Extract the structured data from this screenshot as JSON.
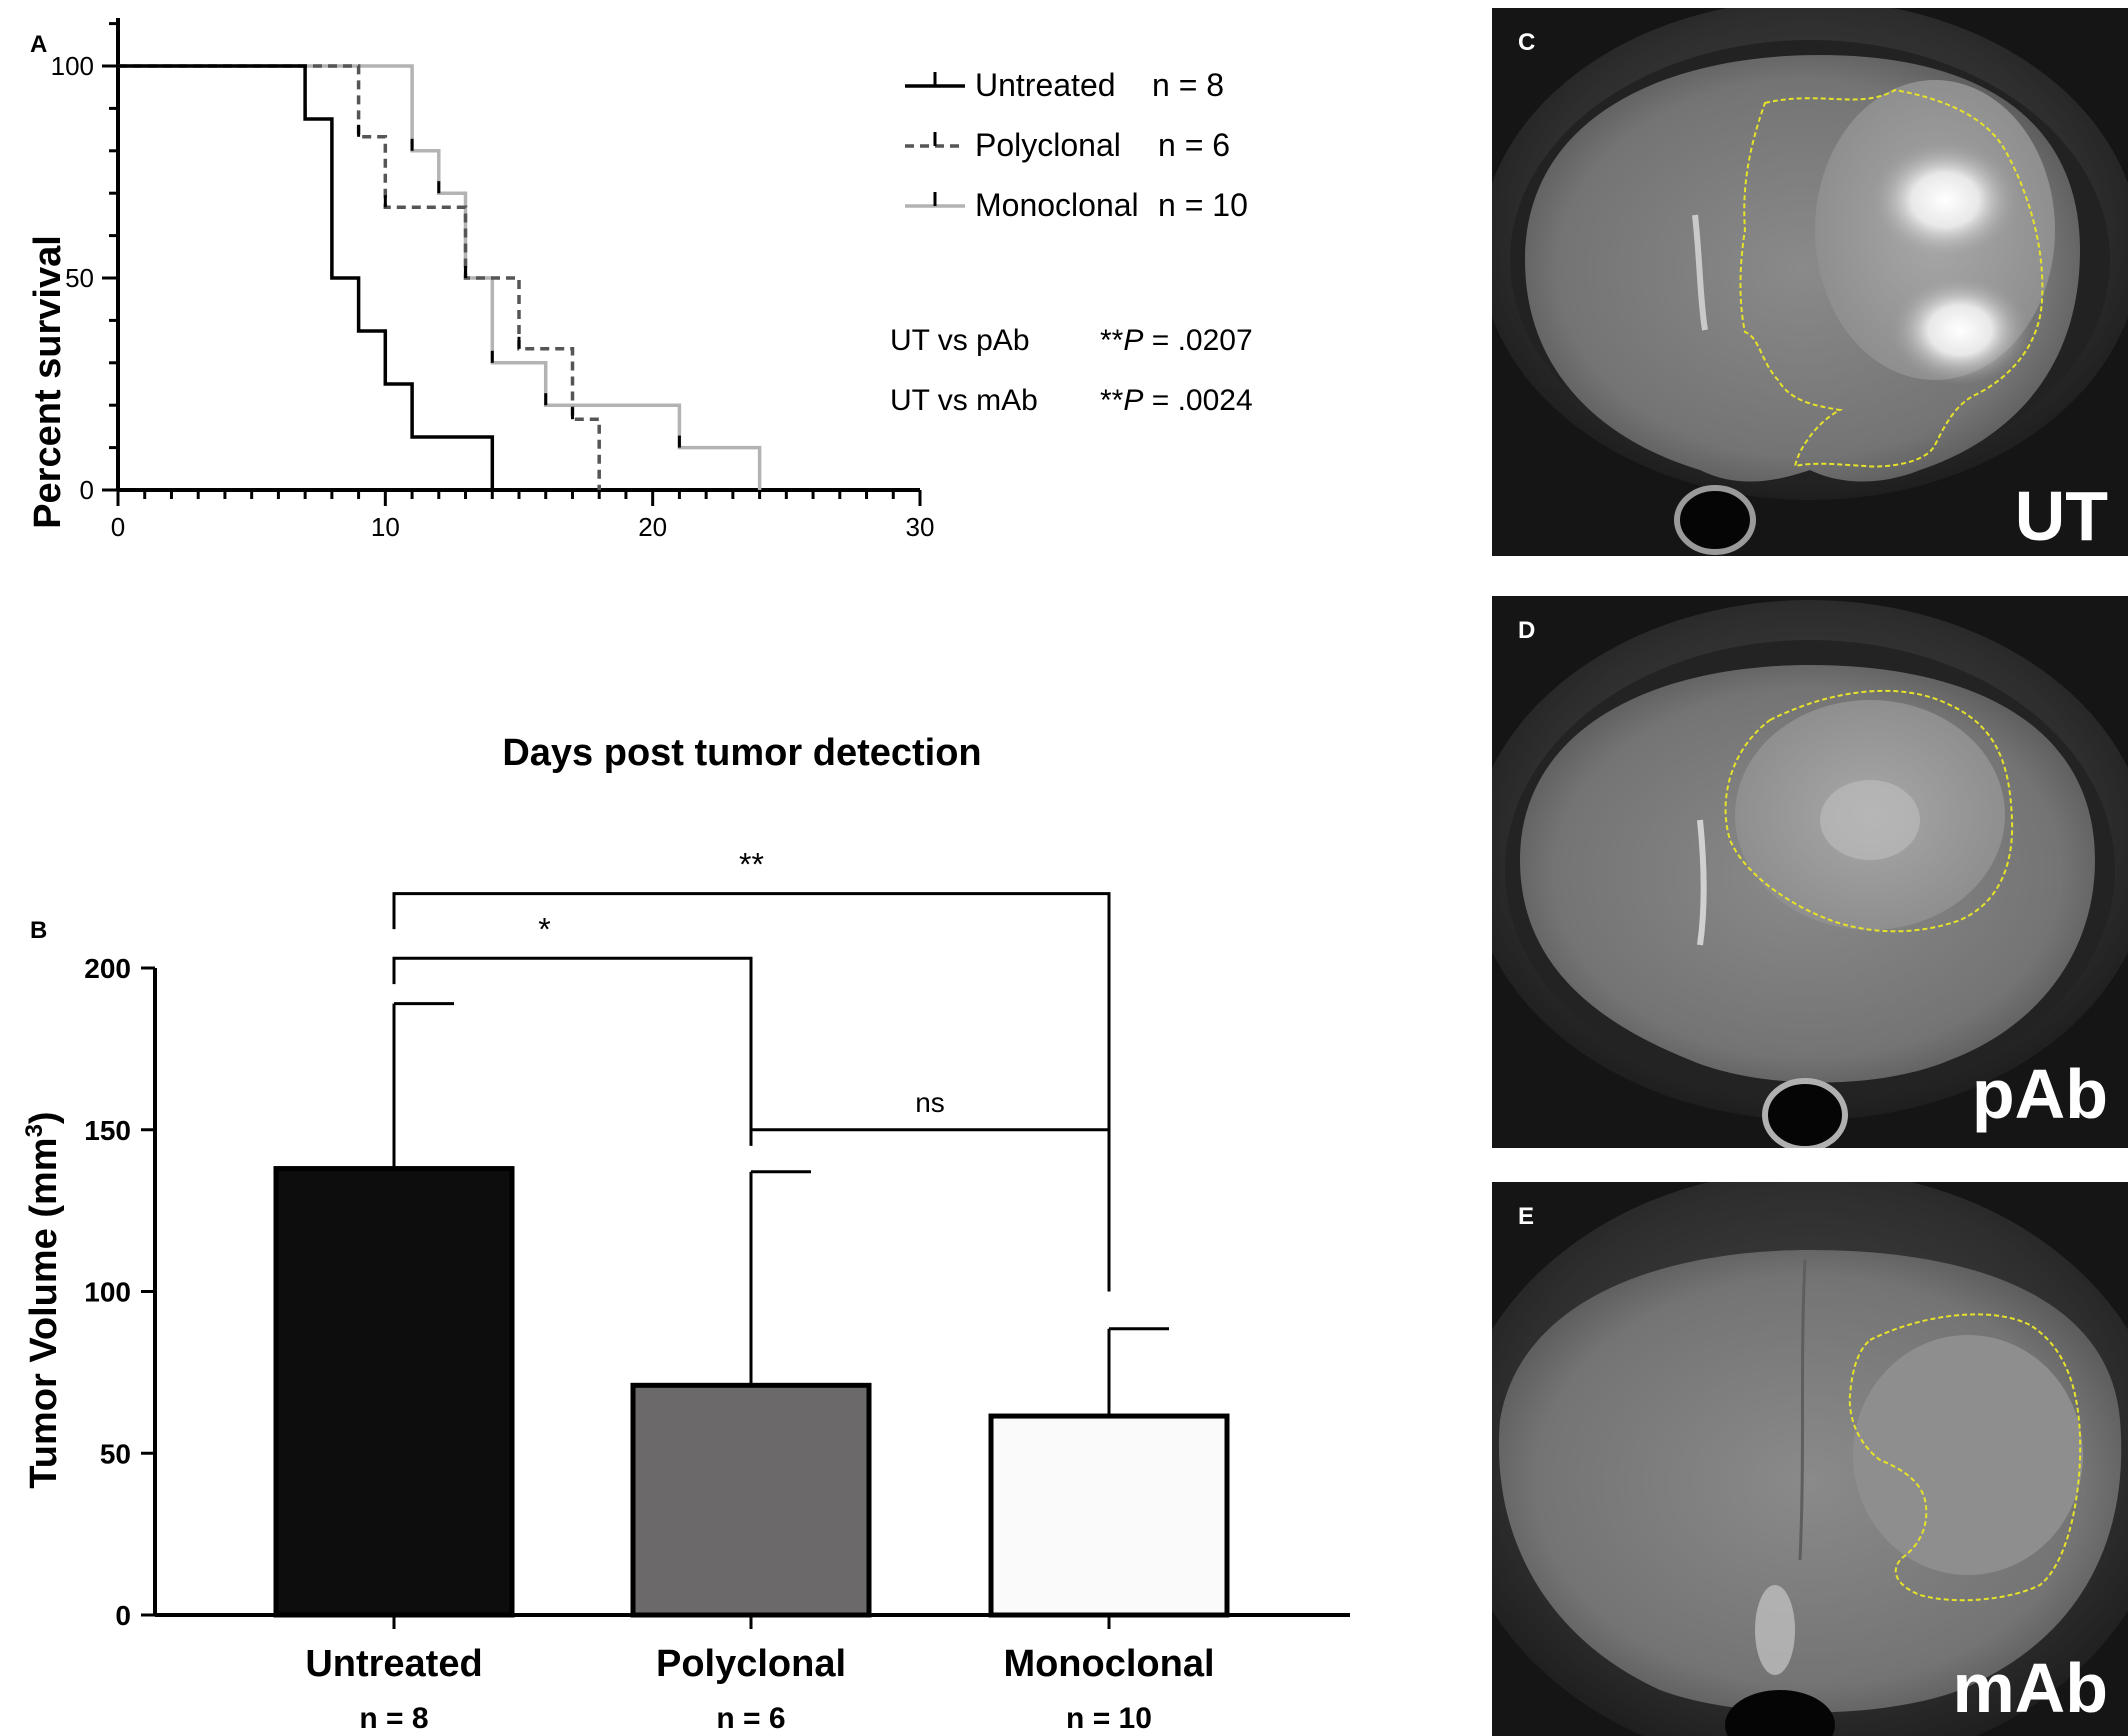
{
  "panels": {
    "A": "A",
    "B": "B",
    "C": "C",
    "D": "D",
    "E": "E"
  },
  "chart_data": [
    {
      "type": "line",
      "subtype": "kaplan-meier step",
      "panel": "A",
      "xlabel": "Days post tumor detection",
      "ylabel": "Percent survival",
      "xlim": [
        0,
        30
      ],
      "ylim": [
        0,
        100
      ],
      "xticks": [
        0,
        10,
        20,
        30
      ],
      "yticks": [
        0,
        50,
        100
      ],
      "legend_position": "top-right",
      "series": [
        {
          "name": "Untreated",
          "n_label": "n = 8",
          "style": "solid",
          "color": "#000000",
          "points": [
            [
              0,
              100
            ],
            [
              7,
              100
            ],
            [
              7,
              87.5
            ],
            [
              8,
              87.5
            ],
            [
              8,
              50
            ],
            [
              9,
              50
            ],
            [
              9,
              37.5
            ],
            [
              10,
              37.5
            ],
            [
              10,
              25
            ],
            [
              11,
              25
            ],
            [
              11,
              12.5
            ],
            [
              14,
              12.5
            ],
            [
              14,
              0
            ]
          ],
          "censor_x": []
        },
        {
          "name": "Polyclonal",
          "n_label": "n = 6",
          "style": "dashed",
          "color": "#555555",
          "points": [
            [
              0,
              100
            ],
            [
              9,
              100
            ],
            [
              9,
              83.3
            ],
            [
              10,
              83.3
            ],
            [
              10,
              66.7
            ],
            [
              13,
              66.7
            ],
            [
              13,
              50
            ],
            [
              15,
              50
            ],
            [
              15,
              33.3
            ],
            [
              17,
              33.3
            ],
            [
              17,
              16.7
            ],
            [
              18,
              16.7
            ],
            [
              18,
              0
            ]
          ],
          "censor_x": []
        },
        {
          "name": "Monoclonal",
          "n_label": "n = 10",
          "style": "solid",
          "color": "#b3b3b3",
          "points": [
            [
              0,
              100
            ],
            [
              11,
              100
            ],
            [
              11,
              80
            ],
            [
              12,
              80
            ],
            [
              12,
              70
            ],
            [
              13,
              70
            ],
            [
              13,
              50
            ],
            [
              14,
              50
            ],
            [
              14,
              30
            ],
            [
              16,
              30
            ],
            [
              16,
              20
            ],
            [
              21,
              20
            ],
            [
              21,
              10
            ],
            [
              24,
              10
            ],
            [
              24,
              0
            ]
          ],
          "censor_x": []
        }
      ],
      "stats": [
        {
          "label": "UT vs pAb",
          "sig": "**",
          "p_symbol": "P",
          "p_value": " = .0207"
        },
        {
          "label": "UT vs mAb",
          "sig": "**",
          "p_symbol": "P",
          "p_value": " = .0024"
        }
      ]
    },
    {
      "type": "bar",
      "panel": "B",
      "ylabel": "Tumor Volume (mm",
      "ylabel_sup": "3",
      "ylabel_close": ")",
      "ylim": [
        0,
        200
      ],
      "yticks": [
        0,
        50,
        100,
        150,
        200
      ],
      "categories": [
        "Untreated",
        "Polyclonal",
        "Monoclonal"
      ],
      "n_labels": [
        "n = 8",
        "n = 6",
        "n = 10"
      ],
      "values": [
        138,
        71,
        61.5
      ],
      "error_upper": [
        51,
        66,
        27
      ],
      "bar_colors": [
        "#0d0d0d",
        "#6b6969",
        "#fafafa"
      ],
      "comparisons": [
        {
          "from": 0,
          "to": 2,
          "label": "**"
        },
        {
          "from": 0,
          "to": 1,
          "label": "*"
        },
        {
          "from": 1,
          "to": 2,
          "label": "ns"
        }
      ]
    }
  ],
  "mri_panels": [
    {
      "panel": "C",
      "label": "UT"
    },
    {
      "panel": "D",
      "label": "pAb"
    },
    {
      "panel": "E",
      "label": "mAb"
    }
  ],
  "colors": {
    "outline": "#e6e22a",
    "mri_background": "#151515"
  }
}
